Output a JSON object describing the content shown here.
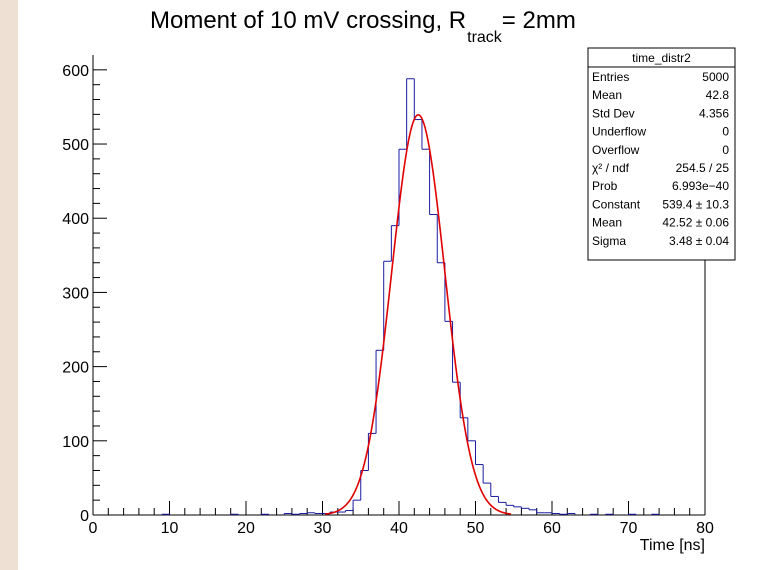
{
  "chart_data": {
    "type": "histogram",
    "title": {
      "main": "Moment of 10 mV crossing, R",
      "subscript": "track",
      "tail": " = 2mm"
    },
    "xlabel": "Time [ns]",
    "ylabel": "",
    "xlim": [
      0,
      80
    ],
    "ylim": [
      0,
      620
    ],
    "x_ticks": [
      "0",
      "10",
      "20",
      "30",
      "40",
      "50",
      "60",
      "70",
      "80"
    ],
    "y_ticks": [
      "0",
      "100",
      "200",
      "300",
      "400",
      "500",
      "600"
    ],
    "grid": false,
    "bin_width": 1,
    "bins": [
      {
        "x": 9,
        "y": 1
      },
      {
        "x": 18,
        "y": 1
      },
      {
        "x": 22,
        "y": 1
      },
      {
        "x": 25,
        "y": 2
      },
      {
        "x": 26,
        "y": 1
      },
      {
        "x": 27,
        "y": 2
      },
      {
        "x": 28,
        "y": 3
      },
      {
        "x": 29,
        "y": 2
      },
      {
        "x": 30,
        "y": 2
      },
      {
        "x": 31,
        "y": 4
      },
      {
        "x": 32,
        "y": 4
      },
      {
        "x": 33,
        "y": 6
      },
      {
        "x": 34,
        "y": 20
      },
      {
        "x": 35,
        "y": 60
      },
      {
        "x": 36,
        "y": 110
      },
      {
        "x": 37,
        "y": 222
      },
      {
        "x": 38,
        "y": 342
      },
      {
        "x": 39,
        "y": 390
      },
      {
        "x": 40,
        "y": 493
      },
      {
        "x": 41,
        "y": 588
      },
      {
        "x": 42,
        "y": 533
      },
      {
        "x": 43,
        "y": 493
      },
      {
        "x": 44,
        "y": 405
      },
      {
        "x": 45,
        "y": 340
      },
      {
        "x": 46,
        "y": 261
      },
      {
        "x": 47,
        "y": 179
      },
      {
        "x": 48,
        "y": 131
      },
      {
        "x": 49,
        "y": 100
      },
      {
        "x": 50,
        "y": 68
      },
      {
        "x": 51,
        "y": 43
      },
      {
        "x": 52,
        "y": 25
      },
      {
        "x": 53,
        "y": 17
      },
      {
        "x": 54,
        "y": 13
      },
      {
        "x": 55,
        "y": 11
      },
      {
        "x": 56,
        "y": 9
      },
      {
        "x": 57,
        "y": 7
      },
      {
        "x": 58,
        "y": 3
      },
      {
        "x": 59,
        "y": 3
      },
      {
        "x": 60,
        "y": 2
      },
      {
        "x": 61,
        "y": 1
      },
      {
        "x": 62,
        "y": 2
      },
      {
        "x": 65,
        "y": 1
      },
      {
        "x": 67,
        "y": 1
      },
      {
        "x": 70,
        "y": 1
      },
      {
        "x": 73,
        "y": 1
      }
    ],
    "fit": {
      "type": "gaus",
      "constant": 539.4,
      "mean": 42.52,
      "sigma": 3.48
    },
    "stats_box": {
      "title": "time_distr2",
      "rows": [
        {
          "label": "Entries",
          "value": "5000"
        },
        {
          "label": "Mean",
          "value": "42.8"
        },
        {
          "label": "Std Dev",
          "value": "4.356"
        },
        {
          "label": "Underflow",
          "value": "0"
        },
        {
          "label": "Overflow",
          "value": "0"
        },
        {
          "label": "χ² / ndf",
          "value": "254.5 / 25"
        },
        {
          "label": "Prob",
          "value": "6.993e−40"
        },
        {
          "label": "Constant",
          "value": "539.4 ± 10.3"
        },
        {
          "label": "Mean",
          "value": "42.52 ± 0.06"
        },
        {
          "label": "Sigma",
          "value": "3.48 ± 0.04"
        }
      ]
    },
    "colors": {
      "histogram": "#1a1aa0",
      "fit": "#e00000",
      "axes": "#000000"
    }
  }
}
